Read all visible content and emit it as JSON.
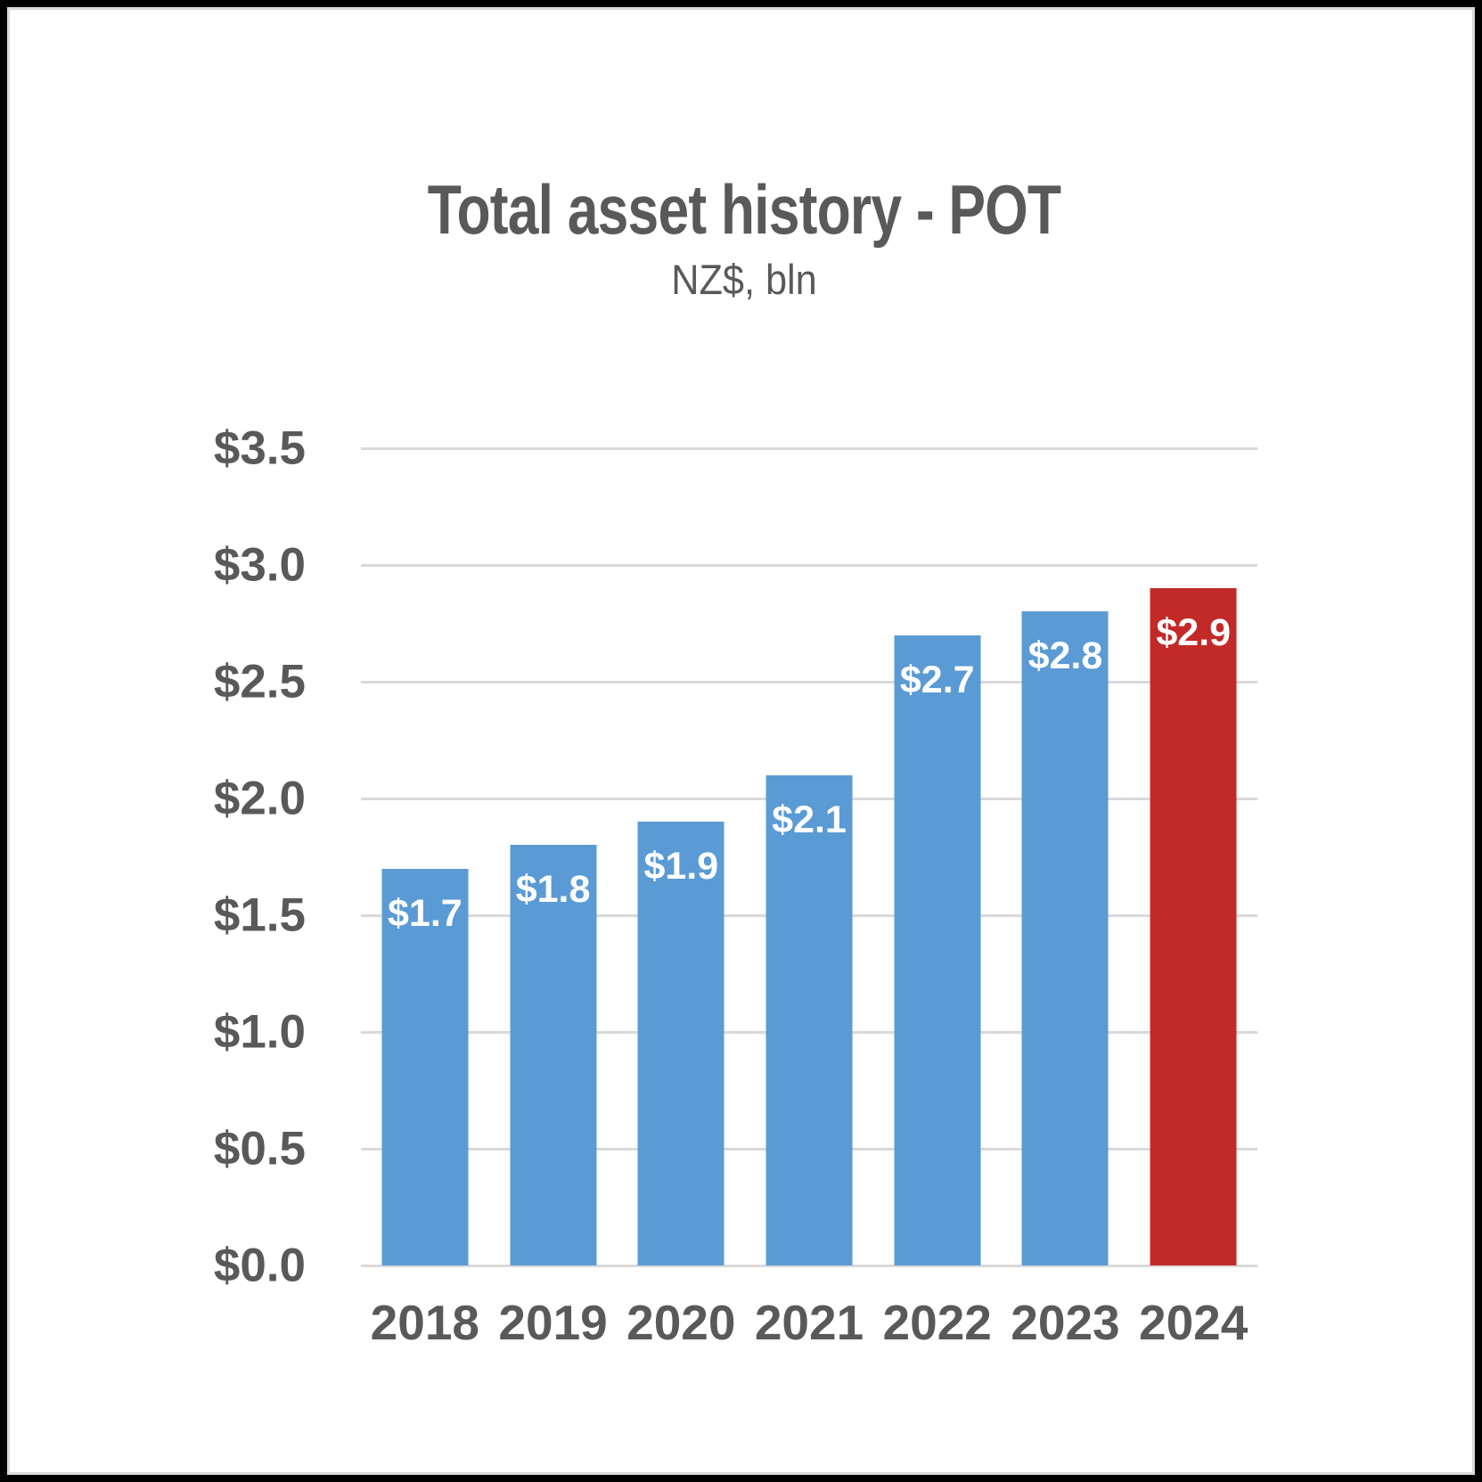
{
  "chart_data": {
    "type": "bar",
    "title": "Total asset history - POT",
    "subtitle": "NZ$, bln",
    "categories": [
      "2018",
      "2019",
      "2020",
      "2021",
      "2022",
      "2023",
      "2024"
    ],
    "values": [
      1.7,
      1.8,
      1.9,
      2.1,
      2.7,
      2.8,
      2.9
    ],
    "value_labels": [
      "$1.7",
      "$1.8",
      "$1.9",
      "$2.1",
      "$2.7",
      "$2.8",
      "$2.9"
    ],
    "highlight_index": 6,
    "xlabel": "",
    "ylabel": "",
    "ylim": [
      0,
      3.5
    ],
    "y_ticks": [
      3.5,
      3.0,
      2.5,
      2.0,
      1.5,
      1.0,
      0.5,
      0.0
    ],
    "y_tick_labels": [
      "$3.5",
      "$3.0",
      "$2.5",
      "$2.0",
      "$1.5",
      "$1.0",
      "$0.5",
      "$0.0"
    ],
    "grid": true,
    "legend": false,
    "colors": {
      "bar_default": "#5B9BD5",
      "bar_highlight": "#C22A28",
      "text": "#595959",
      "gridline": "#D9D9D9",
      "value_label_text": "#FFFFFF",
      "frame": "#000000"
    }
  }
}
